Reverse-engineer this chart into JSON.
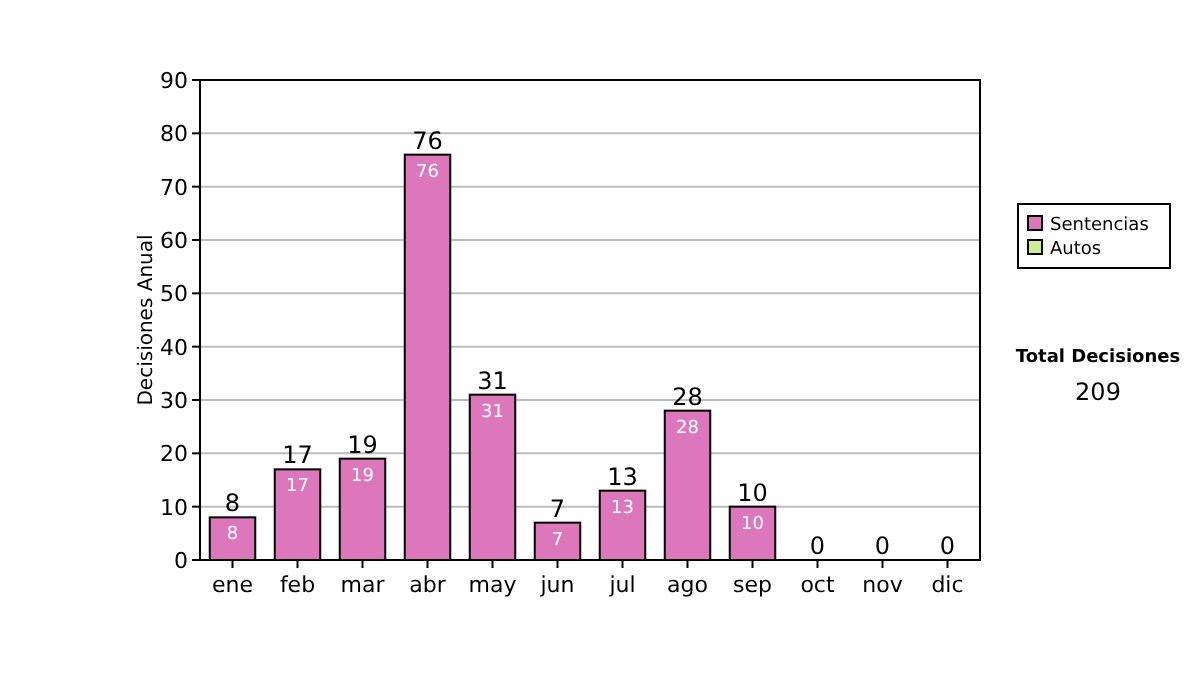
{
  "chart_data": {
    "type": "bar",
    "ylabel": "Decisiones Anual",
    "categories": [
      "ene",
      "feb",
      "mar",
      "abr",
      "may",
      "jun",
      "jul",
      "ago",
      "sep",
      "oct",
      "nov",
      "dic"
    ],
    "series": [
      {
        "name": "Sentencias",
        "color": "#dd77bb",
        "values": [
          8,
          17,
          19,
          76,
          31,
          7,
          13,
          28,
          10,
          0,
          0,
          0
        ],
        "value_labels": [
          "8",
          "17",
          "19",
          "76",
          "31",
          "7",
          "13",
          "28",
          "10",
          null,
          null,
          null
        ]
      },
      {
        "name": "Autos",
        "color": "#ccee99",
        "values": [
          0,
          0,
          0,
          0,
          0,
          0,
          0,
          0,
          0,
          0,
          0,
          0
        ]
      }
    ],
    "totals": [
      "8",
      "17",
      "19",
      "76",
      "31",
      "7",
      "13",
      "28",
      "10",
      "0",
      "0",
      "0"
    ],
    "ylim": [
      0,
      90
    ],
    "yticks": [
      0,
      10,
      20,
      30,
      40,
      50,
      60,
      70,
      80,
      90
    ],
    "grid": "y",
    "legend": "right",
    "annotations": [
      "Total Decisiones",
      "209"
    ]
  }
}
